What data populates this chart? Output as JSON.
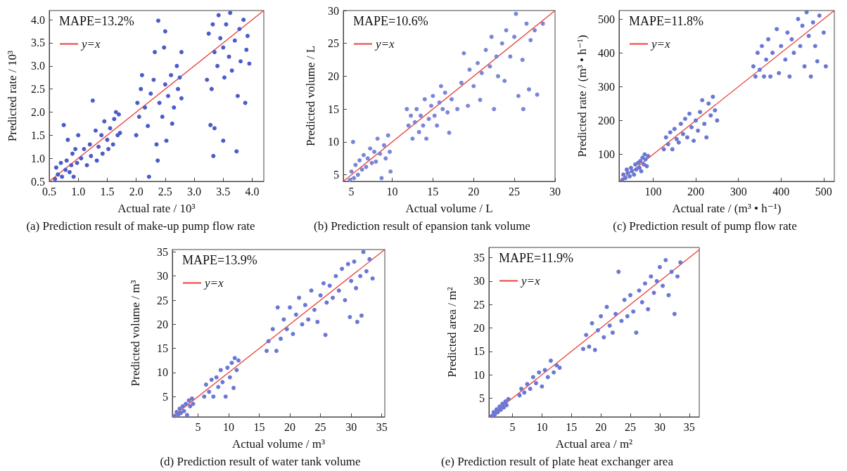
{
  "chart_data": [
    {
      "type": "scatter",
      "title": "(a) Prediction result of make-up pump flow rate",
      "xlabel": "Actual rate / 10³",
      "ylabel": "Predicted rate / 10³",
      "annotations": [
        "MAPE=13.2%"
      ],
      "xlim": [
        0.5,
        4.2
      ],
      "ylim": [
        0.5,
        4.2
      ],
      "xticks": [
        0.5,
        {
          "value": 1,
          "label": "1.0"
        },
        1.5,
        {
          "value": 2,
          "label": "2.0"
        },
        2.5,
        {
          "value": 3,
          "label": "3.0"
        },
        3.5,
        {
          "value": 4,
          "label": "4.0"
        }
      ],
      "yticks": [
        0.5,
        {
          "value": 1,
          "label": "1.0"
        },
        1.5,
        {
          "value": 2,
          "label": "2.0"
        },
        2.5,
        {
          "value": 3,
          "label": "3.0"
        },
        3.5,
        {
          "value": 4,
          "label": "4.0"
        }
      ],
      "grid": false,
      "legend": "top left",
      "series": [
        {
          "type": "scatter",
          "marker": "circle",
          "color": "#4b5cc8",
          "x": [
            0.6,
            0.62,
            0.65,
            0.7,
            0.72,
            0.75,
            0.78,
            0.8,
            0.82,
            0.85,
            0.88,
            0.9,
            0.92,
            0.95,
            0.98,
            1.0,
            1.05,
            1.1,
            1.15,
            1.2,
            1.22,
            1.25,
            1.3,
            1.32,
            1.35,
            1.4,
            1.42,
            1.45,
            1.5,
            1.52,
            1.55,
            1.6,
            1.62,
            1.65,
            1.68,
            1.7,
            1.72,
            2.0,
            2.02,
            2.05,
            2.08,
            2.1,
            2.15,
            2.2,
            2.22,
            2.25,
            2.3,
            2.32,
            2.35,
            2.37,
            2.38,
            2.4,
            2.45,
            2.48,
            2.5,
            2.52,
            2.5,
            2.55,
            2.6,
            2.62,
            2.65,
            2.7,
            2.72,
            2.75,
            2.78,
            2.78,
            3.22,
            3.25,
            3.28,
            3.3,
            3.32,
            3.33,
            3.35,
            3.35,
            3.4,
            3.42,
            3.45,
            3.5,
            3.5,
            3.52,
            3.55,
            3.6,
            3.62,
            3.65,
            3.7,
            3.73,
            3.75,
            3.78,
            3.8,
            3.85,
            3.88,
            3.9,
            3.92,
            3.95
          ],
          "values": [
            0.55,
            0.8,
            0.65,
            0.9,
            0.6,
            1.72,
            0.75,
            0.95,
            1.4,
            0.7,
            0.85,
            1.1,
            0.6,
            1.2,
            0.9,
            1.5,
            1.0,
            1.2,
            0.85,
            1.3,
            1.05,
            2.25,
            1.6,
            0.95,
            1.25,
            1.5,
            1.1,
            1.8,
            1.4,
            1.2,
            1.65,
            1.3,
            1.85,
            2.0,
            1.5,
            1.95,
            1.55,
            1.5,
            2.2,
            1.9,
            2.5,
            2.8,
            2.1,
            1.7,
            0.6,
            2.4,
            2.7,
            3.3,
            1.3,
            0.95,
            3.98,
            2.2,
            1.9,
            3.4,
            2.6,
            1.38,
            3.75,
            2.35,
            2.8,
            1.75,
            2.1,
            3.0,
            2.5,
            2.75,
            3.3,
            2.3,
            2.7,
            3.7,
            1.72,
            2.5,
            3.9,
            1.05,
            3.3,
            1.65,
            3.0,
            4.1,
            3.6,
            1.38,
            3.4,
            2.75,
            3.9,
            3.2,
            4.15,
            2.9,
            3.55,
            1.15,
            2.35,
            3.8,
            3.1,
            4.0,
            2.2,
            3.35,
            3.65,
            3.05
          ]
        },
        {
          "type": "line",
          "name": "y=x",
          "marker": "none",
          "line_style": "solid",
          "color": "#e8403a",
          "x": [
            0.5,
            4.2
          ],
          "values": [
            0.5,
            4.2
          ]
        }
      ]
    },
    {
      "type": "scatter",
      "title": "(b) Prediction result of epansion tank volume",
      "xlabel": "Actual volume / L",
      "ylabel": "Predicted volume / L",
      "annotations": [
        "MAPE=10.6%"
      ],
      "xlim": [
        4,
        30
      ],
      "ylim": [
        4,
        30
      ],
      "xticks": [
        5,
        10,
        15,
        20,
        25,
        30
      ],
      "yticks": [
        5,
        10,
        15,
        20,
        25,
        30
      ],
      "grid": false,
      "legend": "top left",
      "series": [
        {
          "type": "scatter",
          "marker": "circle",
          "color": "#7b86d8",
          "x": [
            4.8,
            5.0,
            5.2,
            5.3,
            5.5,
            5.8,
            6.0,
            6.3,
            6.5,
            6.8,
            7.0,
            7.3,
            7.5,
            7.8,
            8.0,
            8.2,
            8.5,
            8.7,
            9.0,
            9.2,
            9.5,
            9.7,
            9.8,
            11.8,
            12.0,
            12.3,
            12.5,
            12.8,
            13.0,
            13.3,
            13.5,
            13.8,
            14.0,
            14.2,
            14.5,
            14.8,
            15.0,
            15.2,
            15.5,
            15.8,
            16.0,
            16.2,
            16.5,
            16.8,
            17.0,
            17.3,
            18.0,
            18.5,
            18.8,
            19.3,
            19.5,
            20.0,
            20.5,
            20.8,
            21.0,
            21.5,
            22.0,
            22.2,
            22.5,
            22.8,
            23.0,
            23.5,
            23.8,
            24.0,
            24.5,
            25.0,
            25.2,
            25.5,
            26.0,
            26.1,
            26.5,
            26.8,
            27.0,
            27.5,
            27.8,
            28.5
          ],
          "values": [
            4.2,
            5.5,
            10.0,
            4.5,
            6.5,
            5.0,
            7.2,
            5.8,
            8.0,
            6.2,
            7.5,
            9.0,
            6.8,
            8.5,
            7.0,
            10.5,
            8.2,
            4.5,
            9.5,
            7.5,
            11.0,
            8.5,
            5.5,
            15.0,
            12.5,
            14.0,
            10.5,
            13.0,
            15.0,
            11.5,
            14.0,
            12.5,
            16.5,
            10.5,
            13.5,
            15.5,
            17.0,
            14.0,
            12.5,
            16.0,
            18.5,
            15.0,
            17.5,
            14.5,
            11.4,
            16.5,
            15.0,
            19.0,
            23.5,
            15.5,
            21.0,
            18.5,
            22.0,
            16.4,
            20.5,
            24.0,
            21.5,
            26.0,
            15.0,
            23.0,
            20.0,
            25.0,
            19.3,
            27.0,
            23.0,
            26.0,
            29.5,
            17.0,
            22.5,
            15.0,
            28.0,
            18.0,
            25.5,
            27.0,
            17.2,
            28.0
          ]
        },
        {
          "type": "line",
          "name": "y=x",
          "marker": "none",
          "line_style": "solid",
          "color": "#e8403a",
          "x": [
            4,
            30
          ],
          "values": [
            4,
            30
          ]
        }
      ]
    },
    {
      "type": "scatter",
      "title": "(c) Prediction result of pump flow rate",
      "xlabel": "Actual rate / (m³ • h⁻¹)",
      "ylabel": "Predicted rate / (m³ • h⁻¹)",
      "annotations": [
        "MAPE=11.8%"
      ],
      "xlim": [
        20,
        525
      ],
      "ylim": [
        20,
        525
      ],
      "xticks": [
        100,
        200,
        300,
        400,
        500
      ],
      "yticks": [
        100,
        200,
        300,
        400,
        500
      ],
      "grid": false,
      "legend": "top left",
      "series": [
        {
          "type": "scatter",
          "marker": "circle",
          "color": "#6a78d4",
          "x": [
            28,
            30,
            35,
            38,
            40,
            45,
            48,
            50,
            55,
            58,
            60,
            65,
            68,
            70,
            72,
            75,
            78,
            80,
            82,
            85,
            88,
            125,
            130,
            135,
            140,
            145,
            150,
            155,
            160,
            165,
            170,
            175,
            180,
            185,
            190,
            195,
            200,
            205,
            210,
            215,
            220,
            225,
            230,
            235,
            240,
            245,
            250,
            335,
            340,
            345,
            350,
            355,
            360,
            365,
            370,
            375,
            380,
            390,
            395,
            400,
            410,
            415,
            420,
            425,
            430,
            440,
            445,
            450,
            455,
            460,
            465,
            470,
            475,
            480,
            485,
            490,
            500,
            505
          ],
          "values": [
            25,
            40,
            30,
            55,
            45,
            35,
            60,
            50,
            40,
            70,
            55,
            75,
            60,
            80,
            50,
            90,
            70,
            100,
            85,
            65,
            95,
            115,
            150,
            130,
            165,
            115,
            175,
            145,
            135,
            190,
            160,
            205,
            150,
            220,
            180,
            140,
            200,
            170,
            225,
            260,
            190,
            150,
            250,
            215,
            270,
            230,
            200,
            360,
            330,
            400,
            350,
            420,
            330,
            380,
            440,
            330,
            400,
            470,
            340,
            420,
            380,
            460,
            330,
            440,
            400,
            500,
            420,
            480,
            360,
            520,
            450,
            330,
            490,
            420,
            375,
            510,
            460,
            360
          ]
        },
        {
          "type": "line",
          "name": "y=x",
          "marker": "none",
          "line_style": "solid",
          "color": "#e8403a",
          "x": [
            20,
            525
          ],
          "values": [
            20,
            525
          ]
        }
      ]
    },
    {
      "type": "scatter",
      "title": "(d) Prediction result of water tank volume",
      "xlabel": "Actual volume / m³",
      "ylabel": "Predicted volume / m³",
      "annotations": [
        "MAPE=13.9%"
      ],
      "xlim": [
        0.8,
        35.5
      ],
      "ylim": [
        0.8,
        35.5
      ],
      "xticks": [
        5,
        10,
        15,
        20,
        25,
        30,
        35
      ],
      "yticks": [
        5,
        10,
        15,
        20,
        25,
        30,
        35
      ],
      "grid": false,
      "legend": "top left",
      "series": [
        {
          "type": "scatter",
          "marker": "circle",
          "color": "#6a78d4",
          "x": [
            1.2,
            1.5,
            1.8,
            2.0,
            2.2,
            2.5,
            2.7,
            3.0,
            3.2,
            3.5,
            3.7,
            4.0,
            4.2,
            6.0,
            6.3,
            6.8,
            7.2,
            7.5,
            8.0,
            8.3,
            8.7,
            9.0,
            9.5,
            9.8,
            10.2,
            10.5,
            10.8,
            11.0,
            11.3,
            11.6,
            16.2,
            16.5,
            17.2,
            17.8,
            18.0,
            18.5,
            19.0,
            19.5,
            20.0,
            20.5,
            21.0,
            21.5,
            22.0,
            22.5,
            23.0,
            23.5,
            24.0,
            24.5,
            25.0,
            25.5,
            25.8,
            26.0,
            26.5,
            27.0,
            27.5,
            28.0,
            28.5,
            29.0,
            29.5,
            29.8,
            30.0,
            30.5,
            30.8,
            31.0,
            31.5,
            31.7,
            32.0,
            32.5,
            33.0,
            33.5
          ],
          "values": [
            1.0,
            1.8,
            1.3,
            2.5,
            1.6,
            3.0,
            2.0,
            3.5,
            1.2,
            4.2,
            3.0,
            4.6,
            3.5,
            5.0,
            7.5,
            6.0,
            8.5,
            5.0,
            9.0,
            7.0,
            10.5,
            8.0,
            5.0,
            11.0,
            9.0,
            12.0,
            6.8,
            13.0,
            10.5,
            12.5,
            14.5,
            16.5,
            19.0,
            14.5,
            23.5,
            17.0,
            21.0,
            19.0,
            23.5,
            18.0,
            22.0,
            25.5,
            20.0,
            24.0,
            21.0,
            27.0,
            23.0,
            20.5,
            26.0,
            28.5,
            17.8,
            24.5,
            28.0,
            25.5,
            30.0,
            27.0,
            31.5,
            25.0,
            32.5,
            21.5,
            29.0,
            33.0,
            27.5,
            20.5,
            30.0,
            21.8,
            35.0,
            31.0,
            33.5,
            29.5
          ]
        },
        {
          "type": "line",
          "name": "y=x",
          "marker": "none",
          "line_style": "solid",
          "color": "#e8403a",
          "x": [
            0.8,
            35.5
          ],
          "values": [
            0.8,
            35.5
          ]
        }
      ]
    },
    {
      "type": "scatter",
      "title": "(e) Prediction result of plate heat exchanger area",
      "xlabel": "Actual area / m²",
      "ylabel": "Predicted area / m²",
      "annotations": [
        "MAPE=11.9%"
      ],
      "xlim": [
        1,
        36.7
      ],
      "ylim": [
        1,
        37.2
      ],
      "xticks": [
        5,
        10,
        15,
        20,
        25,
        30,
        35
      ],
      "yticks": [
        5,
        10,
        15,
        20,
        25,
        30,
        35
      ],
      "grid": false,
      "legend": "top left",
      "series": [
        {
          "type": "scatter",
          "marker": "circle",
          "color": "#6a78d4",
          "x": [
            1.5,
            1.8,
            2.0,
            2.3,
            2.5,
            2.8,
            3.0,
            3.3,
            3.5,
            3.8,
            4.0,
            4.3,
            6.2,
            6.5,
            7.0,
            7.5,
            8.0,
            8.5,
            9.0,
            9.5,
            10.0,
            10.5,
            11.0,
            11.5,
            12.0,
            12.5,
            13.0,
            17.0,
            17.5,
            18.0,
            18.5,
            19.0,
            19.5,
            20.0,
            20.5,
            21.0,
            21.5,
            22.0,
            22.5,
            23.0,
            23.5,
            24.0,
            24.5,
            25.0,
            25.5,
            26.0,
            26.5,
            27.0,
            27.5,
            28.0,
            28.5,
            29.0,
            29.5,
            30.0,
            30.5,
            31.0,
            31.5,
            32.0,
            32.5,
            33.0,
            33.5
          ],
          "values": [
            1.2,
            2.0,
            1.5,
            2.6,
            2.0,
            3.2,
            2.5,
            3.8,
            3.0,
            4.3,
            3.5,
            4.8,
            5.6,
            7.0,
            6.2,
            8.0,
            7.0,
            9.5,
            8.2,
            10.5,
            7.5,
            11.0,
            9.5,
            13.0,
            10.5,
            12.0,
            11.5,
            15.5,
            18.5,
            16.0,
            21.0,
            15.3,
            19.5,
            22.5,
            18.0,
            24.5,
            20.5,
            19.0,
            23.0,
            32.0,
            21.5,
            26.0,
            22.5,
            27.0,
            23.5,
            19.0,
            28.0,
            25.5,
            29.5,
            24.0,
            31.0,
            27.5,
            30.0,
            33.0,
            29.0,
            34.5,
            27.0,
            32.0,
            23.0,
            31.0,
            34.0
          ]
        },
        {
          "type": "line",
          "name": "y=x",
          "marker": "none",
          "line_style": "solid",
          "color": "#e8403a",
          "x": [
            1,
            36.7
          ],
          "values": [
            1,
            36.7
          ]
        }
      ]
    }
  ]
}
